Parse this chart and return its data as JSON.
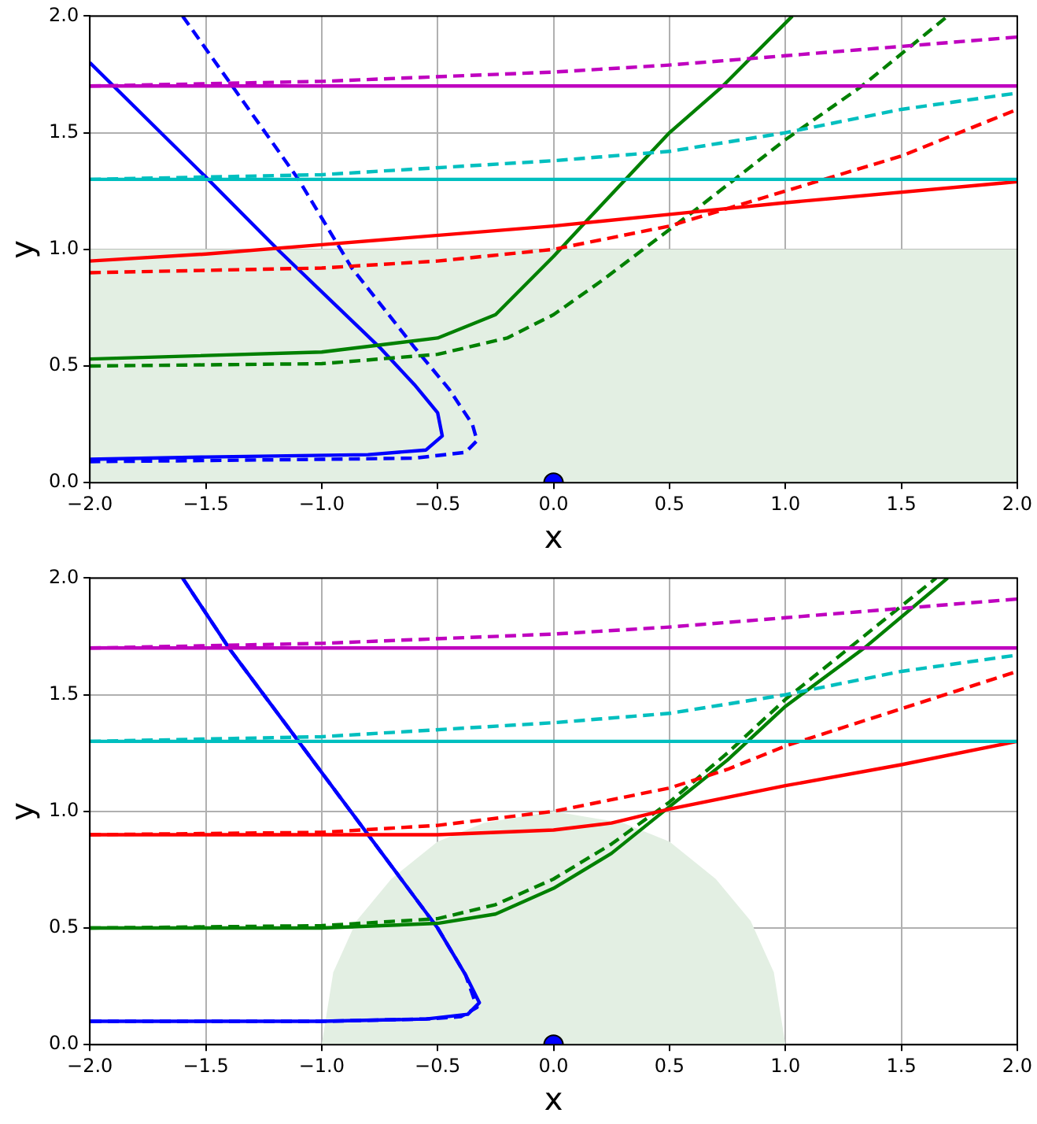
{
  "chart_data": [
    {
      "type": "line",
      "xlabel": "x",
      "ylabel": "y",
      "grid": true,
      "legend": false,
      "marker": "none",
      "xlim": [
        -2,
        2
      ],
      "ylim": [
        0,
        2
      ],
      "xticks": [
        {
          "value": -2,
          "label": "−2.0"
        },
        {
          "value": -1.5,
          "label": "−1.5"
        },
        {
          "value": -1,
          "label": "−1.0"
        },
        {
          "value": -0.5,
          "label": "−0.5"
        },
        {
          "value": 0,
          "label": "0.0"
        },
        {
          "value": 0.5,
          "label": "0.5"
        },
        {
          "value": 1,
          "label": "1.0"
        },
        {
          "value": 1.5,
          "label": "1.5"
        },
        {
          "value": 2,
          "label": "2.0"
        }
      ],
      "yticks": [
        {
          "value": 0,
          "label": "0.0"
        },
        {
          "value": 0.5,
          "label": "0.5"
        },
        {
          "value": 1,
          "label": "1.0"
        },
        {
          "value": 1.5,
          "label": "1.5"
        },
        {
          "value": 2,
          "label": "2.0"
        }
      ],
      "bands": [
        {
          "axis": "y",
          "from": 0,
          "to": 1,
          "color": "#e3efe3"
        }
      ],
      "series": [
        {
          "color": "#0000ff",
          "x": [
            -2,
            -1.5,
            -1.18,
            -0.75,
            -0.6,
            -0.5,
            -0.48,
            -0.55,
            -0.8,
            -1.5,
            -2
          ],
          "values": [
            1.8,
            1.31,
            0.99,
            0.58,
            0.42,
            0.3,
            0.2,
            0.14,
            0.12,
            0.11,
            0.1
          ]
        },
        {
          "color": "#0000ff",
          "line_style": "dashed",
          "x": [
            -1.6,
            -1.1,
            -0.87,
            -0.6,
            -0.45,
            -0.35,
            -0.33,
            -0.38,
            -0.6,
            -1,
            -2
          ],
          "values": [
            2.0,
            1.3,
            0.92,
            0.58,
            0.4,
            0.25,
            0.18,
            0.13,
            0.105,
            0.1,
            0.09
          ]
        },
        {
          "color": "#008000",
          "x": [
            -2,
            -1,
            -0.5,
            -0.25,
            0,
            0.15,
            0.5,
            0.73,
            1.03
          ],
          "values": [
            0.53,
            0.56,
            0.62,
            0.72,
            0.97,
            1.13,
            1.5,
            1.7,
            2.0
          ]
        },
        {
          "color": "#008000",
          "line_style": "dashed",
          "x": [
            -2,
            -1,
            -0.5,
            -0.2,
            0,
            0.2,
            0.6,
            1,
            1.33,
            1.7
          ],
          "values": [
            0.5,
            0.51,
            0.55,
            0.62,
            0.72,
            0.86,
            1.16,
            1.47,
            1.7,
            2.0
          ]
        },
        {
          "color": "#ff0000",
          "x": [
            -2,
            -1.5,
            -1,
            0,
            0.5,
            1,
            2
          ],
          "values": [
            0.95,
            0.98,
            1.02,
            1.1,
            1.15,
            1.2,
            1.29
          ]
        },
        {
          "color": "#ff0000",
          "line_style": "dashed",
          "x": [
            -2,
            -1,
            -0.5,
            0,
            0.5,
            1,
            1.5,
            2
          ],
          "values": [
            0.9,
            0.92,
            0.95,
            1.0,
            1.1,
            1.25,
            1.4,
            1.6
          ]
        },
        {
          "color": "#00bfbf",
          "x": [
            -2,
            2
          ],
          "values": [
            1.3,
            1.3
          ]
        },
        {
          "color": "#00bfbf",
          "line_style": "dashed",
          "x": [
            -2,
            -1,
            0,
            0.5,
            1,
            1.5,
            2
          ],
          "values": [
            1.3,
            1.32,
            1.38,
            1.42,
            1.5,
            1.6,
            1.67
          ]
        },
        {
          "color": "#bf00bf",
          "x": [
            -2,
            2
          ],
          "values": [
            1.7,
            1.7
          ]
        },
        {
          "color": "#bf00bf",
          "line_style": "dashed",
          "x": [
            -2,
            -1,
            0,
            0.5,
            1,
            1.5,
            2
          ],
          "values": [
            1.7,
            1.72,
            1.76,
            1.79,
            1.83,
            1.87,
            1.91
          ]
        },
        {
          "type": "scatter",
          "marker": "circle",
          "color": "#0000ff",
          "x": [
            0
          ],
          "values": [
            0
          ]
        }
      ]
    },
    {
      "type": "line",
      "xlabel": "x",
      "ylabel": "y",
      "grid": true,
      "legend": false,
      "marker": "none",
      "xlim": [
        -2,
        2
      ],
      "ylim": [
        0,
        2
      ],
      "xticks": [
        {
          "value": -2,
          "label": "−2.0"
        },
        {
          "value": -1.5,
          "label": "−1.5"
        },
        {
          "value": -1,
          "label": "−1.0"
        },
        {
          "value": -0.5,
          "label": "−0.5"
        },
        {
          "value": 0,
          "label": "0.0"
        },
        {
          "value": 0.5,
          "label": "0.5"
        },
        {
          "value": 1,
          "label": "1.0"
        },
        {
          "value": 1.5,
          "label": "1.5"
        },
        {
          "value": 2,
          "label": "2.0"
        }
      ],
      "yticks": [
        {
          "value": 0,
          "label": "0.0"
        },
        {
          "value": 0.5,
          "label": "0.5"
        },
        {
          "value": 1,
          "label": "1.0"
        },
        {
          "value": 1.5,
          "label": "1.5"
        },
        {
          "value": 2,
          "label": "2.0"
        }
      ],
      "series": [
        {
          "type": "area",
          "color": "#e3efe3",
          "x": [
            -1,
            -0.95,
            -0.85,
            -0.7,
            -0.5,
            -0.3,
            0,
            0.3,
            0.5,
            0.7,
            0.85,
            0.95,
            1
          ],
          "values": [
            0,
            0.31,
            0.53,
            0.71,
            0.87,
            0.95,
            1,
            0.95,
            0.87,
            0.71,
            0.53,
            0.31,
            0
          ]
        },
        {
          "color": "#0000ff",
          "x": [
            -1.6,
            -1.4,
            -1.1,
            -0.8,
            -0.5,
            -0.38,
            -0.32,
            -0.37,
            -0.55,
            -1,
            -2
          ],
          "values": [
            2.0,
            1.7,
            1.3,
            0.9,
            0.5,
            0.3,
            0.18,
            0.13,
            0.11,
            0.1,
            0.1
          ]
        },
        {
          "color": "#0000ff",
          "line_style": "dashed",
          "x": [
            -1.6,
            -1.4,
            -1.1,
            -0.8,
            -0.5,
            -0.38,
            -0.33,
            -0.4,
            -0.55,
            -1,
            -2
          ],
          "values": [
            2.0,
            1.7,
            1.3,
            0.9,
            0.5,
            0.3,
            0.16,
            0.12,
            0.11,
            0.1,
            0.1
          ]
        },
        {
          "color": "#008000",
          "x": [
            -2,
            -1,
            -0.5,
            -0.25,
            0,
            0.25,
            0.5,
            0.75,
            1,
            1.34,
            1.7
          ],
          "values": [
            0.5,
            0.5,
            0.52,
            0.56,
            0.67,
            0.82,
            1.02,
            1.22,
            1.45,
            1.7,
            2.0
          ]
        },
        {
          "color": "#008000",
          "line_style": "dashed",
          "x": [
            -2,
            -1,
            -0.5,
            -0.25,
            0,
            0.25,
            0.5,
            0.75,
            1,
            1.3,
            1.65
          ],
          "values": [
            0.5,
            0.51,
            0.54,
            0.6,
            0.71,
            0.86,
            1.04,
            1.25,
            1.48,
            1.72,
            2.0
          ]
        },
        {
          "color": "#ff0000",
          "x": [
            -2,
            -1,
            -0.5,
            0,
            0.25,
            0.5,
            1,
            1.5,
            2
          ],
          "values": [
            0.9,
            0.9,
            0.9,
            0.92,
            0.95,
            1.01,
            1.11,
            1.2,
            1.3
          ]
        },
        {
          "color": "#ff0000",
          "line_style": "dashed",
          "x": [
            -2,
            -1,
            -0.5,
            0,
            0.5,
            0.75,
            1,
            1.5,
            2
          ],
          "values": [
            0.9,
            0.91,
            0.94,
            1.0,
            1.1,
            1.18,
            1.28,
            1.44,
            1.6
          ]
        },
        {
          "color": "#00bfbf",
          "x": [
            -2,
            2
          ],
          "values": [
            1.3,
            1.3
          ]
        },
        {
          "color": "#00bfbf",
          "line_style": "dashed",
          "x": [
            -2,
            -1,
            0,
            0.5,
            1,
            1.5,
            2
          ],
          "values": [
            1.3,
            1.32,
            1.38,
            1.42,
            1.5,
            1.6,
            1.67
          ]
        },
        {
          "color": "#bf00bf",
          "x": [
            -2,
            2
          ],
          "values": [
            1.7,
            1.7
          ]
        },
        {
          "color": "#bf00bf",
          "line_style": "dashed",
          "x": [
            -2,
            -1,
            0,
            0.5,
            1,
            1.5,
            2
          ],
          "values": [
            1.7,
            1.72,
            1.76,
            1.79,
            1.83,
            1.87,
            1.91
          ]
        },
        {
          "type": "scatter",
          "marker": "circle",
          "color": "#0000ff",
          "x": [
            0
          ],
          "values": [
            0
          ]
        }
      ]
    }
  ]
}
